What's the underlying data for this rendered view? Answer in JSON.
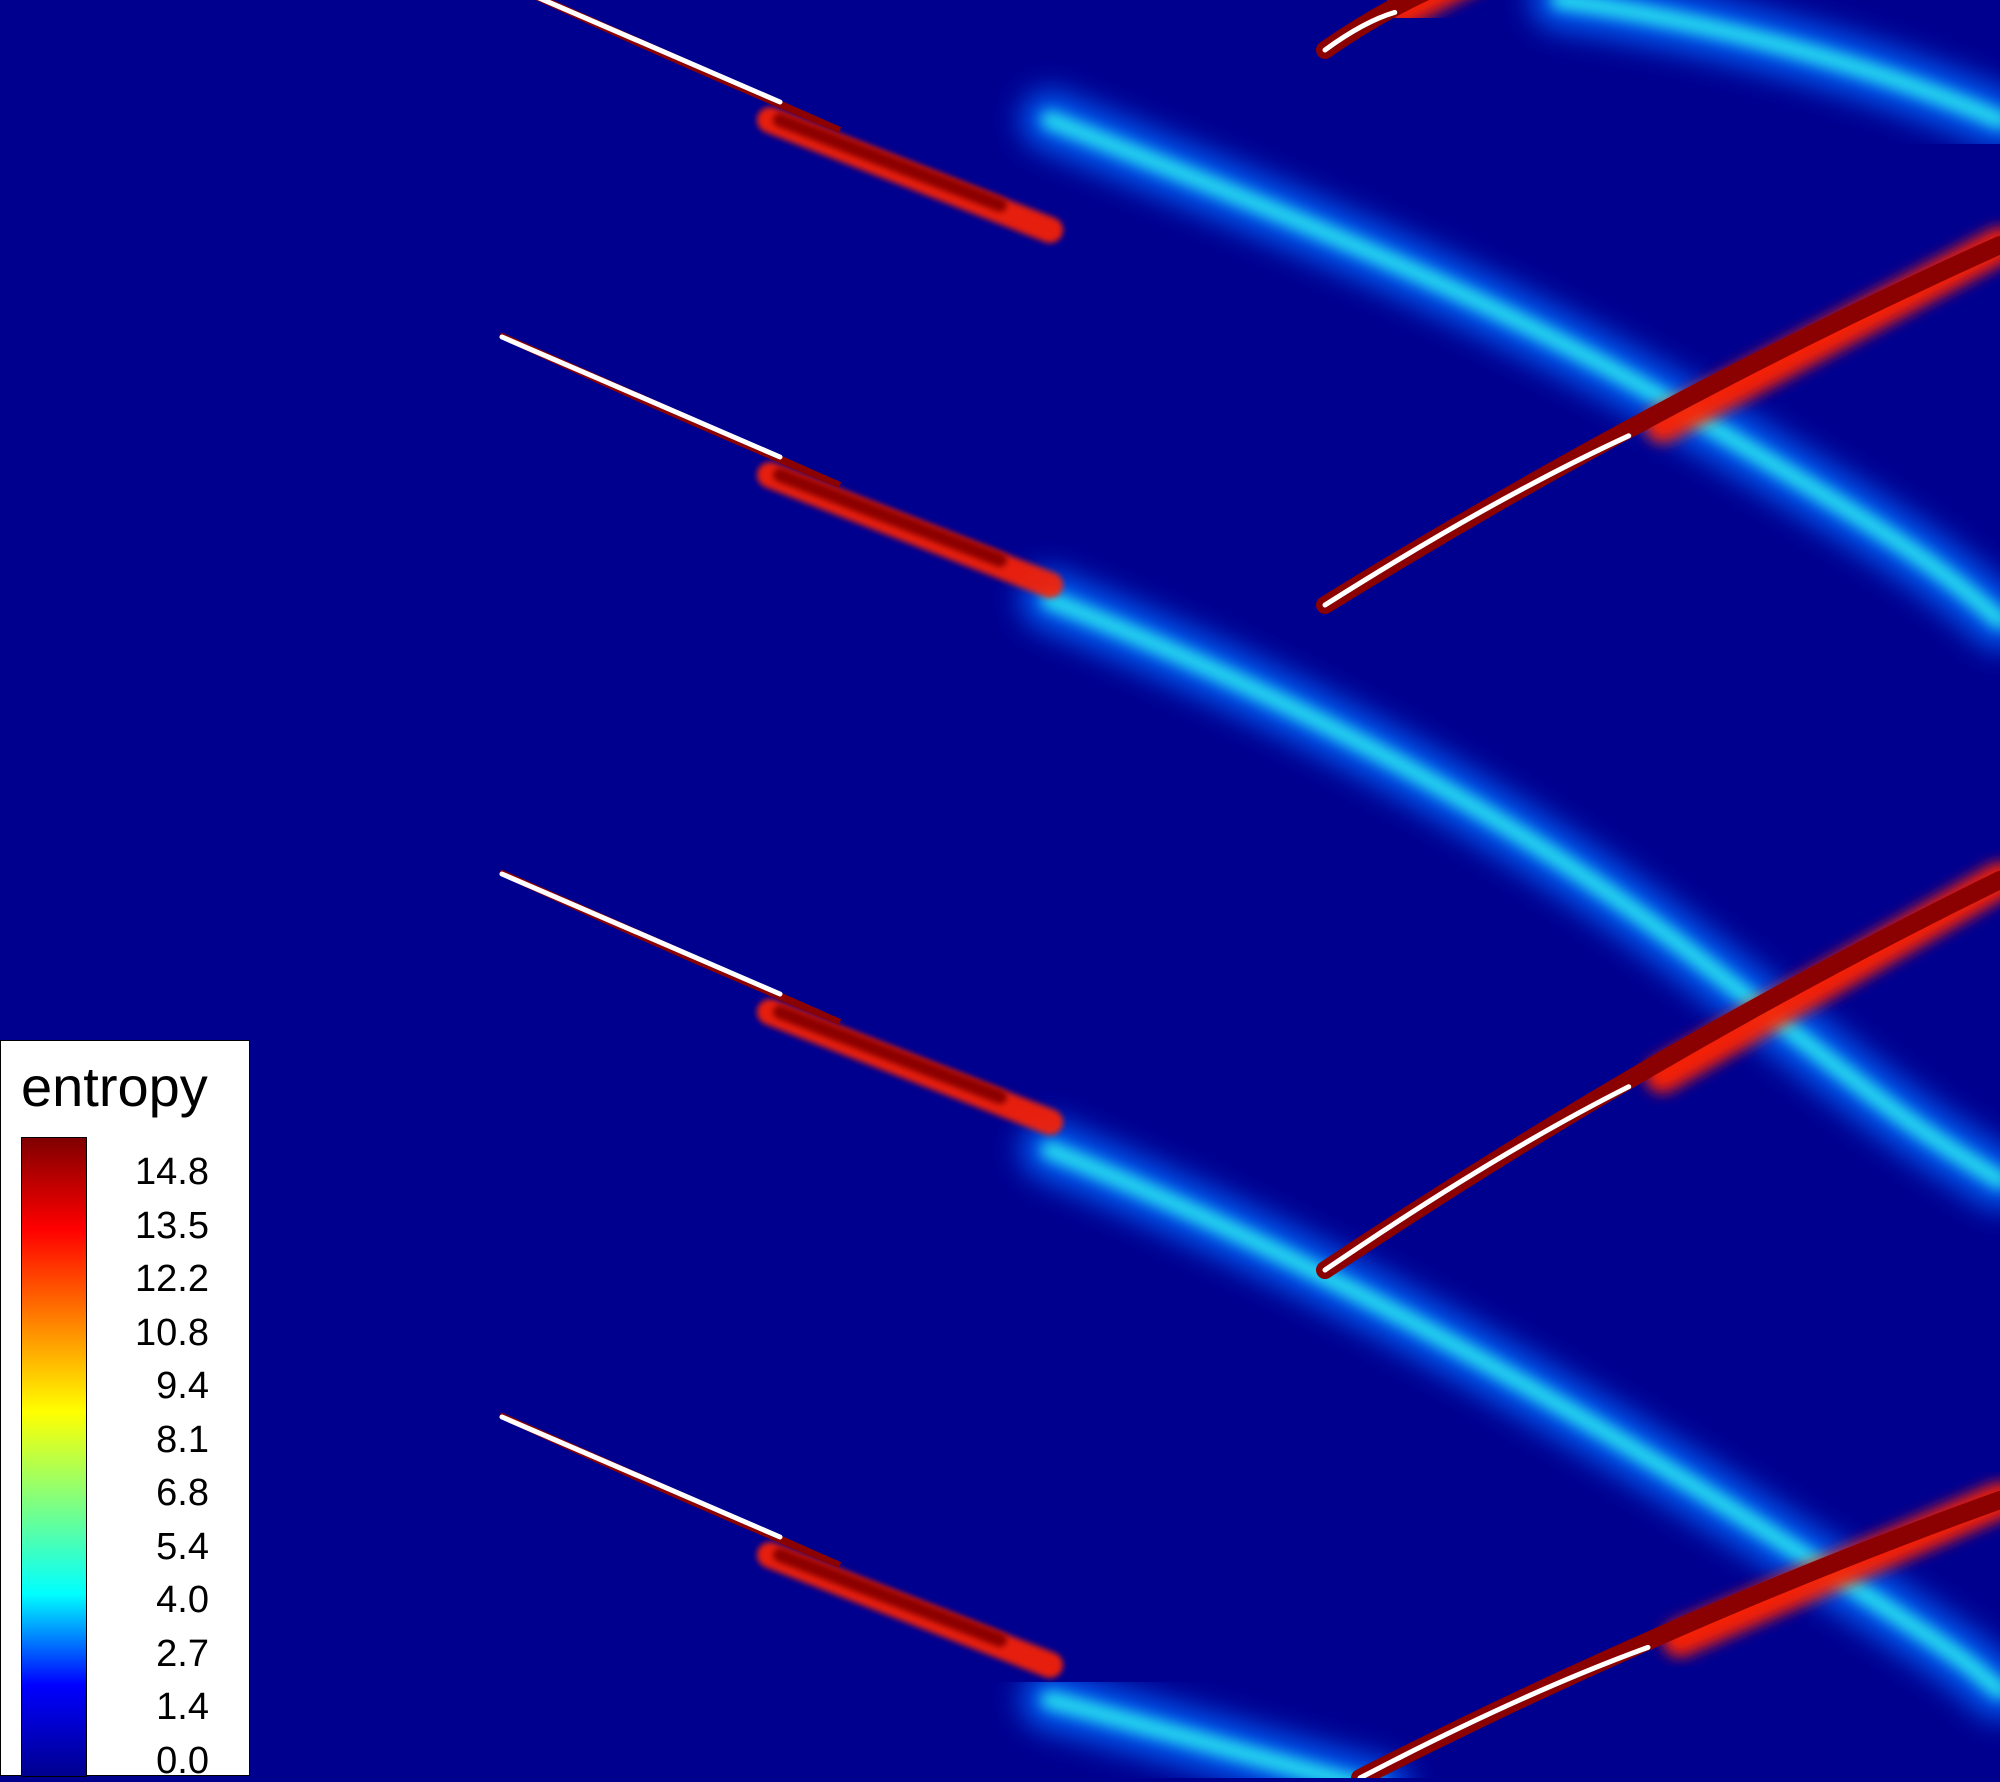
{
  "legend": {
    "title": "entropy",
    "ticks": [
      "14.8",
      "13.5",
      "12.2",
      "10.8",
      "9.4",
      "8.1",
      "6.8",
      "5.4",
      "4.0",
      "2.7",
      "1.4",
      "0.0"
    ],
    "colormap": [
      "#00008f",
      "#0000ff",
      "#00ffff",
      "#80ff80",
      "#ffff00",
      "#ff8000",
      "#ff0000",
      "#800000"
    ]
  },
  "colors": {
    "background": "#00008f",
    "wake_glow": "#0066ff",
    "wake_core": "#33ffee",
    "blade_hot": "#8b0000",
    "blade_mid": "#ff2000",
    "blade_edge": "#ffffff"
  }
}
